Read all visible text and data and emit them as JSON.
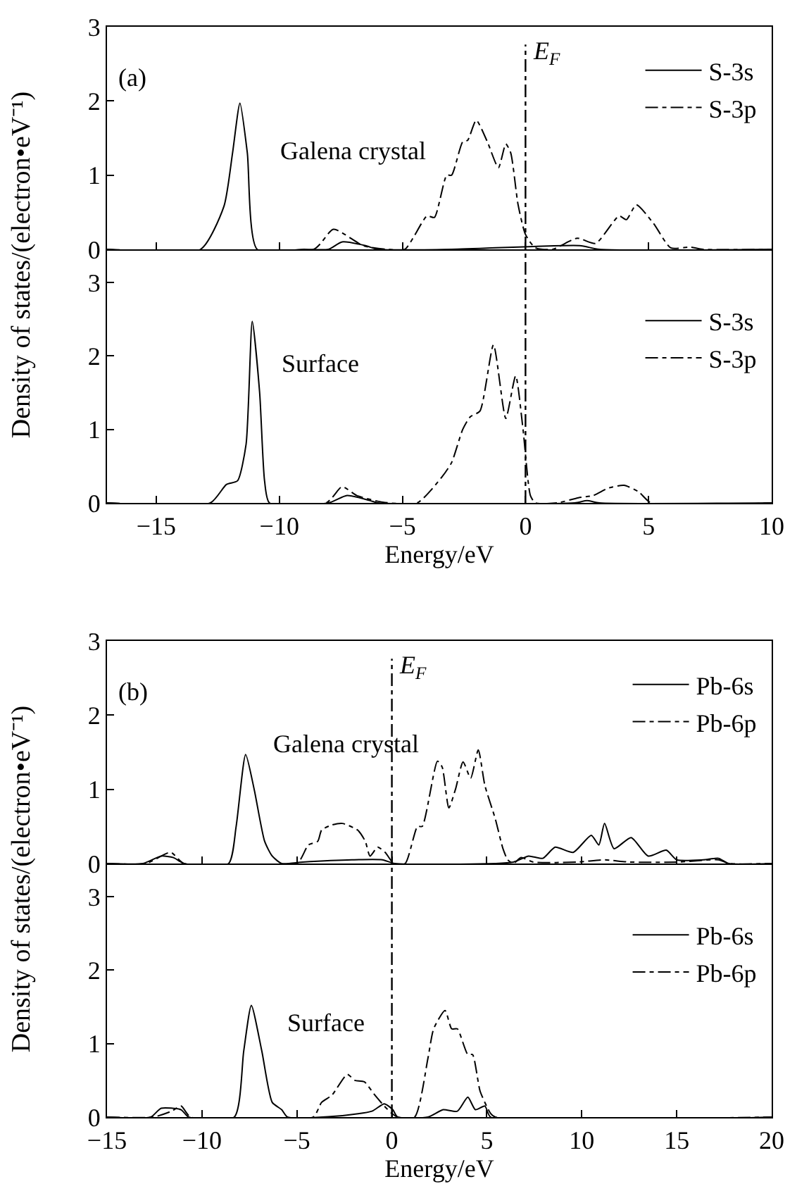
{
  "chart_data": [
    {
      "type": "line",
      "ylabel": "Density of states/(electron•eV⁻¹)",
      "annotations": [
        "(a)",
        "Galena crystal"
      ],
      "xlim": [
        -17,
        10
      ],
      "xticks": [
        -15,
        -10,
        -5,
        0,
        5,
        10
      ],
      "ylim": [
        0,
        3
      ],
      "yticks": [
        0,
        1,
        2,
        3
      ],
      "tick_labels": "y",
      "legend": "top right",
      "ref_lines": [
        {
          "axis": "x",
          "value": 0,
          "label": "E$_{F}$",
          "line_style": "dashed",
          "color": "#000000"
        }
      ],
      "series": [
        {
          "name": "S-3s",
          "color": "#000000",
          "line_style": "solid",
          "x": [
            -17,
            -13.2,
            -12.25,
            -11.9,
            -11.6,
            -11.3,
            -10.9,
            -9,
            -8,
            -7.45,
            -6.5,
            -6,
            -3,
            2.2,
            3,
            10
          ],
          "values": [
            0,
            0,
            0.58,
            1.3,
            1.97,
            1.3,
            0,
            0,
            0,
            0.1,
            0.05,
            0,
            0,
            0.05,
            0,
            0
          ]
        },
        {
          "name": "S-3p",
          "color": "#000000",
          "line_style": "dashed",
          "x": [
            -17,
            -8.6,
            -7.8,
            -6.6,
            -5.6,
            -4.9,
            -4.0,
            -3.7,
            -3.2,
            -3.0,
            -2.55,
            -2.35,
            -2.0,
            -1.55,
            -1.1,
            -0.8,
            -0.6,
            -0.3,
            0,
            0.4,
            1.1,
            2.1,
            2.85,
            3.8,
            4.1,
            4.5,
            5.2,
            5.9,
            6.7,
            7.2,
            10
          ],
          "values": [
            0,
            0,
            0.27,
            0.05,
            0,
            0,
            0.45,
            0.43,
            1.0,
            1.0,
            1.45,
            1.47,
            1.74,
            1.45,
            1.1,
            1.42,
            1.3,
            0.6,
            0.2,
            0.02,
            0,
            0.15,
            0.08,
            0.45,
            0.4,
            0.6,
            0.35,
            0.02,
            0.03,
            0,
            0
          ]
        }
      ]
    },
    {
      "type": "line",
      "xlabel": "Energy/eV",
      "annotations": [
        "Surface"
      ],
      "xlim": [
        -17,
        10
      ],
      "xticks": [
        -15,
        -10,
        -5,
        0,
        5,
        10
      ],
      "ylim": [
        0,
        3.45
      ],
      "yticks": [
        0,
        1,
        2,
        3
      ],
      "legend": "top right",
      "ref_lines": [
        {
          "axis": "x",
          "value": 0,
          "line_style": "dashed",
          "color": "#000000"
        }
      ],
      "series": [
        {
          "name": "S-3s",
          "color": "#000000",
          "line_style": "solid",
          "x": [
            -17,
            -12.8,
            -12.15,
            -11.7,
            -11.35,
            -11.1,
            -10.8,
            -10.6,
            -10.4,
            -8,
            -7.25,
            -6.3,
            -6,
            2,
            2.5,
            3,
            10
          ],
          "values": [
            0,
            0,
            0.25,
            0.3,
            0.8,
            2.47,
            1.5,
            0.3,
            0,
            0,
            0.1,
            0.03,
            0,
            0,
            0.03,
            0,
            0
          ]
        },
        {
          "name": "S-3p",
          "color": "#000000",
          "line_style": "dashed",
          "x": [
            -17,
            -8.1,
            -7.45,
            -6.85,
            -5.8,
            -4.4,
            -3.4,
            -3.0,
            -2.55,
            -2.25,
            -1.85,
            -1.3,
            -0.8,
            -0.4,
            -0.1,
            0.2,
            0.4,
            1.3,
            2.15,
            2.75,
            3.35,
            4.0,
            4.6,
            5.1,
            10
          ],
          "values": [
            0,
            0,
            0.22,
            0.1,
            0.01,
            0,
            0.35,
            0.55,
            1.0,
            1.17,
            1.25,
            2.15,
            1.15,
            1.73,
            1.0,
            0.1,
            0,
            0,
            0.07,
            0.1,
            0.2,
            0.24,
            0.15,
            0,
            0
          ]
        }
      ]
    },
    {
      "type": "line",
      "ylabel": "Density of states/(electron•eV⁻¹)",
      "annotations": [
        "(b)",
        "Galena crystal"
      ],
      "xlim": [
        -15,
        20
      ],
      "xticks": [
        -15,
        -10,
        -5,
        0,
        5,
        10,
        15,
        20
      ],
      "ylim": [
        0,
        3
      ],
      "yticks": [
        0,
        1,
        2,
        3
      ],
      "tick_labels": "y",
      "legend": "top right",
      "ref_lines": [
        {
          "axis": "x",
          "value": 0,
          "label": "E$_{F}$",
          "line_style": "dashed",
          "color": "#000000"
        }
      ],
      "series": [
        {
          "name": "Pb-6s",
          "color": "#000000",
          "line_style": "solid",
          "x": [
            -15,
            -13.1,
            -12.15,
            -11.5,
            -10.95,
            -8.6,
            -8.2,
            -7.7,
            -7.25,
            -6.7,
            -6.3,
            -5.8,
            -4.7,
            -2.1,
            -0.5,
            0.15,
            6.4,
            7.2,
            7.95,
            8.6,
            9.55,
            10.5,
            10.9,
            11.2,
            11.7,
            12.6,
            13.5,
            14.45,
            15.0,
            16.4,
            17.2,
            17.75,
            20
          ],
          "values": [
            0,
            0,
            0.1,
            0.08,
            0,
            0,
            0.5,
            1.47,
            1.0,
            0.3,
            0.1,
            0,
            0.02,
            0.05,
            0.05,
            0,
            0.02,
            0.1,
            0.07,
            0.22,
            0.15,
            0.38,
            0.25,
            0.54,
            0.2,
            0.35,
            0.1,
            0.18,
            0.05,
            0.05,
            0.07,
            0,
            0
          ]
        },
        {
          "name": "Pb-6p",
          "color": "#000000",
          "line_style": "dashed",
          "x": [
            -15,
            -12.95,
            -11.65,
            -10.95,
            -5.0,
            -4.4,
            -3.9,
            -3.7,
            -3.15,
            -2.6,
            -1.8,
            -1.4,
            -1.15,
            -0.75,
            -0.35,
            0.1,
            0.7,
            1.35,
            1.6,
            2.4,
            2.65,
            3.0,
            3.35,
            3.75,
            4.15,
            4.55,
            4.9,
            5.45,
            5.85,
            6.1,
            6.4,
            6.8,
            7.45,
            9.8,
            11.15,
            12.5,
            15.1,
            17.2,
            17.75,
            20
          ],
          "values": [
            0,
            0,
            0.15,
            0,
            0,
            0.25,
            0.3,
            0.45,
            0.52,
            0.54,
            0.45,
            0.3,
            0.1,
            0.22,
            0.15,
            0,
            0,
            0.5,
            0.5,
            1.38,
            1.3,
            0.75,
            1.0,
            1.37,
            1.15,
            1.53,
            1.05,
            0.6,
            0.2,
            0.05,
            0,
            0.08,
            0.02,
            0.02,
            0.05,
            0.02,
            0.02,
            0.05,
            0,
            0
          ]
        }
      ]
    },
    {
      "type": "line",
      "xlabel": "Energy/eV",
      "annotations": [
        "Surface"
      ],
      "xlim": [
        -15,
        20
      ],
      "xticks": [
        -15,
        -10,
        -5,
        0,
        5,
        10,
        15,
        20
      ],
      "ylim": [
        0,
        3.45
      ],
      "yticks": [
        0,
        1,
        2,
        3
      ],
      "legend": "top right",
      "ref_lines": [
        {
          "axis": "x",
          "value": 0,
          "line_style": "dashed",
          "color": "#000000"
        }
      ],
      "series": [
        {
          "name": "Pb-6s",
          "color": "#000000",
          "line_style": "solid",
          "x": [
            -15,
            -12.7,
            -12.15,
            -11.1,
            -10.7,
            -8.3,
            -7.8,
            -7.4,
            -6.85,
            -6.3,
            -5.8,
            -5.5,
            -2.6,
            -1.05,
            -0.4,
            0.05,
            0.3,
            1.9,
            2.7,
            3.45,
            4.0,
            4.4,
            4.9,
            5.2,
            20
          ],
          "values": [
            0,
            0,
            0.12,
            0.1,
            0,
            0,
            0.9,
            1.52,
            0.9,
            0.2,
            0.1,
            0,
            0.02,
            0.08,
            0.18,
            0.1,
            0,
            0,
            0.1,
            0.08,
            0.27,
            0.1,
            0.15,
            0,
            0
          ]
        },
        {
          "name": "Pb-6p",
          "color": "#000000",
          "line_style": "dashed",
          "x": [
            -15,
            -12.55,
            -11.6,
            -11.1,
            -10.6,
            -4.15,
            -3.7,
            -3.15,
            -2.35,
            -1.95,
            -1.45,
            -0.9,
            -0.4,
            0,
            0.3,
            1.2,
            1.9,
            2.2,
            2.8,
            3.15,
            3.45,
            4.0,
            4.25,
            4.65,
            5.2,
            5.45,
            20
          ],
          "values": [
            0,
            0,
            0.08,
            0.15,
            0,
            0,
            0.2,
            0.3,
            0.58,
            0.5,
            0.48,
            0.3,
            0.15,
            0.05,
            0,
            0,
            0.8,
            1.2,
            1.45,
            1.2,
            1.2,
            0.85,
            0.85,
            0.35,
            0.05,
            0,
            0
          ]
        }
      ]
    }
  ]
}
